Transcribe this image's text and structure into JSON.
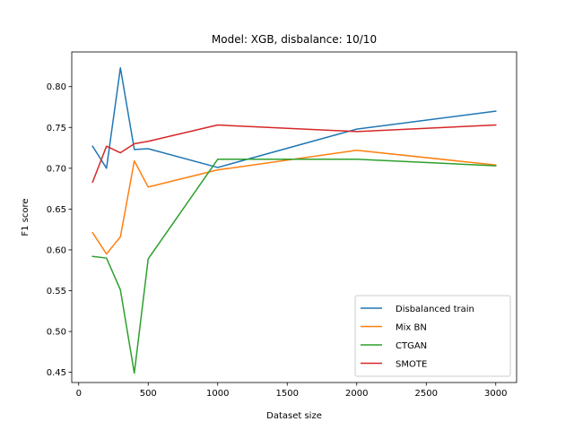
{
  "chart_data": {
    "type": "line",
    "title": "Model: XGB, disbalance: 10/10",
    "xlabel": "Dataset size",
    "ylabel": "F1 score",
    "xlim": [
      -50,
      3150
    ],
    "ylim": [
      0.4375,
      0.8425
    ],
    "xticks": [
      0,
      500,
      1000,
      1500,
      2000,
      2500,
      3000
    ],
    "xtick_labels": [
      "0",
      "500",
      "1000",
      "1500",
      "2000",
      "2500",
      "3000"
    ],
    "yticks": [
      0.45,
      0.5,
      0.55,
      0.6,
      0.65,
      0.7,
      0.75,
      0.8
    ],
    "ytick_labels": [
      "0.45",
      "0.50",
      "0.55",
      "0.60",
      "0.65",
      "0.70",
      "0.75",
      "0.80"
    ],
    "grid": false,
    "legend_position": "lower-right",
    "x": [
      100,
      200,
      300,
      400,
      500,
      1000,
      2000,
      3000
    ],
    "series": [
      {
        "name": "Disbalanced train",
        "color": "#1f77b4",
        "values": [
          0.727,
          0.7,
          0.823,
          0.723,
          0.724,
          0.701,
          0.748,
          0.77
        ]
      },
      {
        "name": "Mix BN",
        "color": "#ff7f0e",
        "values": [
          0.621,
          0.595,
          0.616,
          0.709,
          0.677,
          0.698,
          0.722,
          0.704
        ]
      },
      {
        "name": "CTGAN",
        "color": "#2ca02c",
        "values": [
          0.592,
          0.59,
          0.551,
          0.449,
          0.589,
          0.711,
          0.711,
          0.703
        ]
      },
      {
        "name": "SMOTE",
        "color": "#d62728",
        "values": [
          0.683,
          0.727,
          0.719,
          0.73,
          0.733,
          0.753,
          0.745,
          0.753
        ]
      }
    ]
  }
}
